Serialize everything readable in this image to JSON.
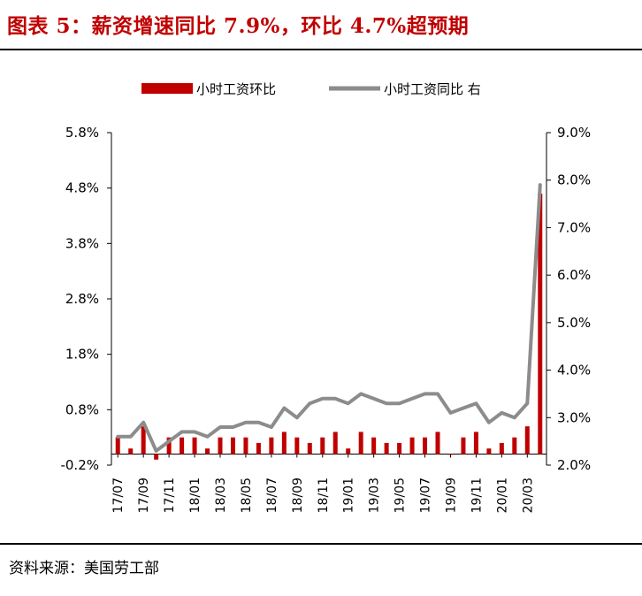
{
  "header": {
    "title": "图表 5：薪资增速同比 7.9%，环比 4.7%超预期"
  },
  "footer": {
    "source": "资料来源：美国劳工部"
  },
  "colors": {
    "bar": "#c00000",
    "line": "#8c8c8c",
    "title": "#c00000"
  },
  "chart_data": {
    "type": "bar+line",
    "legend": [
      "小时工资环比",
      "小时工资同比 右"
    ],
    "legend_position": "top",
    "left_axis": {
      "ticks": [
        "5.8%",
        "4.8%",
        "3.8%",
        "2.8%",
        "1.8%",
        "0.8%",
        "-0.2%"
      ],
      "range": [
        -0.2,
        5.8
      ]
    },
    "right_axis": {
      "ticks": [
        "9.0%",
        "8.0%",
        "7.0%",
        "6.0%",
        "5.0%",
        "4.0%",
        "3.0%",
        "2.0%"
      ],
      "range": [
        2.0,
        9.0
      ]
    },
    "x_ticks": [
      "17/07",
      "17/09",
      "17/11",
      "18/01",
      "18/03",
      "18/05",
      "18/07",
      "18/09",
      "18/11",
      "19/01",
      "19/03",
      "19/05",
      "19/07",
      "19/09",
      "19/11",
      "20/01",
      "20/03"
    ],
    "categories": [
      "17/07",
      "17/08",
      "17/09",
      "17/10",
      "17/11",
      "17/12",
      "18/01",
      "18/02",
      "18/03",
      "18/04",
      "18/05",
      "18/06",
      "18/07",
      "18/08",
      "18/09",
      "18/10",
      "18/11",
      "18/12",
      "19/01",
      "19/02",
      "19/03",
      "19/04",
      "19/05",
      "19/06",
      "19/07",
      "19/08",
      "19/09",
      "19/10",
      "19/11",
      "19/12",
      "20/01",
      "20/02",
      "20/03",
      "20/04"
    ],
    "series": [
      {
        "name": "小时工资环比",
        "axis": "left",
        "type": "bar",
        "values": [
          0.3,
          0.1,
          0.5,
          -0.1,
          0.3,
          0.3,
          0.3,
          0.1,
          0.3,
          0.3,
          0.3,
          0.2,
          0.3,
          0.4,
          0.3,
          0.2,
          0.3,
          0.4,
          0.1,
          0.4,
          0.3,
          0.2,
          0.2,
          0.3,
          0.3,
          0.4,
          0.0,
          0.3,
          0.4,
          0.1,
          0.2,
          0.3,
          0.5,
          4.7
        ]
      },
      {
        "name": "小时工资同比 右",
        "axis": "right",
        "type": "line",
        "values": [
          2.6,
          2.6,
          2.9,
          2.3,
          2.5,
          2.7,
          2.7,
          2.6,
          2.8,
          2.8,
          2.9,
          2.9,
          2.8,
          3.2,
          3.0,
          3.3,
          3.4,
          3.4,
          3.3,
          3.5,
          3.4,
          3.3,
          3.3,
          3.4,
          3.5,
          3.5,
          3.1,
          3.2,
          3.3,
          2.9,
          3.1,
          3.0,
          3.3,
          7.9
        ]
      }
    ]
  }
}
